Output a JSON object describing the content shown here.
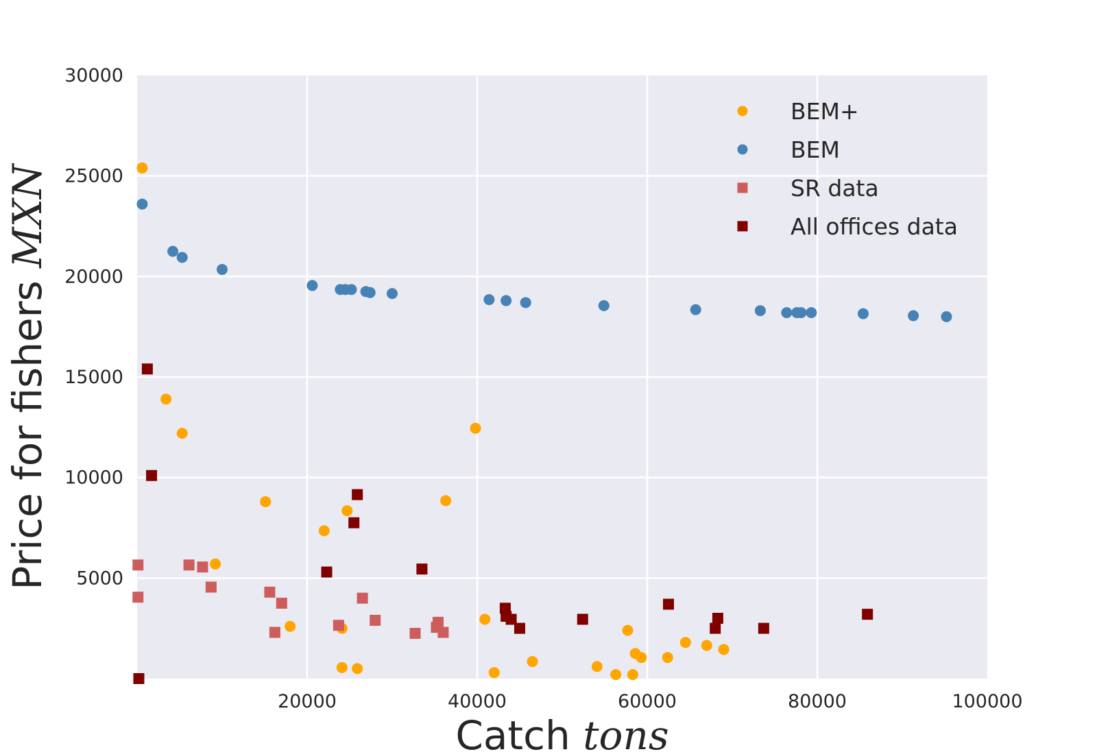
{
  "chart_data": {
    "type": "scatter",
    "xlabel": "Catch",
    "xlabel_math": "tons",
    "ylabel": "Price for fishers",
    "ylabel_math": "MXN",
    "xlim": [
      0,
      100000
    ],
    "ylim": [
      0,
      30000
    ],
    "xticks": [
      20000,
      40000,
      60000,
      80000,
      100000
    ],
    "yticks": [
      5000,
      10000,
      15000,
      20000,
      25000,
      30000
    ],
    "grid": true,
    "legend_position": "top-right",
    "series": [
      {
        "name": "BEM+",
        "marker": "circle",
        "color": "#ffa500",
        "points": [
          [
            600,
            25400
          ],
          [
            3400,
            13900
          ],
          [
            5300,
            12200
          ],
          [
            15100,
            8800
          ],
          [
            9200,
            5700
          ],
          [
            18000,
            2600
          ],
          [
            22000,
            7350
          ],
          [
            24700,
            8350
          ],
          [
            24100,
            2500
          ],
          [
            24100,
            550
          ],
          [
            25900,
            500
          ],
          [
            36300,
            8850
          ],
          [
            39800,
            12450
          ],
          [
            40900,
            2950
          ],
          [
            42000,
            300
          ],
          [
            46500,
            850
          ],
          [
            54100,
            600
          ],
          [
            56300,
            200
          ],
          [
            57700,
            2400
          ],
          [
            58300,
            200
          ],
          [
            58600,
            1250
          ],
          [
            59300,
            1050
          ],
          [
            62400,
            1050
          ],
          [
            64500,
            1800
          ],
          [
            67000,
            1650
          ],
          [
            69000,
            1450
          ]
        ]
      },
      {
        "name": "BEM",
        "marker": "circle",
        "color": "#4682b4",
        "points": [
          [
            600,
            23600
          ],
          [
            4200,
            21250
          ],
          [
            5300,
            20950
          ],
          [
            10000,
            20350
          ],
          [
            20600,
            19550
          ],
          [
            23900,
            19350
          ],
          [
            24500,
            19350
          ],
          [
            25200,
            19350
          ],
          [
            26900,
            19250
          ],
          [
            27400,
            19200
          ],
          [
            30000,
            19150
          ],
          [
            41400,
            18850
          ],
          [
            43400,
            18800
          ],
          [
            45700,
            18700
          ],
          [
            54900,
            18550
          ],
          [
            65700,
            18350
          ],
          [
            73300,
            18300
          ],
          [
            76400,
            18200
          ],
          [
            77600,
            18200
          ],
          [
            78100,
            18200
          ],
          [
            79300,
            18200
          ],
          [
            85400,
            18150
          ],
          [
            91300,
            18050
          ],
          [
            95200,
            18000
          ]
        ]
      },
      {
        "name": "SR data",
        "marker": "square",
        "color": "#cd5c5c",
        "points": [
          [
            100,
            5650
          ],
          [
            100,
            4050
          ],
          [
            6100,
            5650
          ],
          [
            7700,
            5550
          ],
          [
            8700,
            4550
          ],
          [
            15600,
            4300
          ],
          [
            16200,
            2300
          ],
          [
            17000,
            3750
          ],
          [
            23700,
            2650
          ],
          [
            26500,
            4000
          ],
          [
            28000,
            2900
          ],
          [
            32700,
            2250
          ],
          [
            35200,
            2550
          ],
          [
            35400,
            2800
          ],
          [
            36000,
            2300
          ]
        ]
      },
      {
        "name": "All offices data",
        "marker": "square",
        "color": "#800000",
        "points": [
          [
            200,
            0
          ],
          [
            1200,
            15400
          ],
          [
            1700,
            10100
          ],
          [
            22300,
            5300
          ],
          [
            25500,
            7750
          ],
          [
            25900,
            9150
          ],
          [
            33500,
            5450
          ],
          [
            43300,
            3500
          ],
          [
            43400,
            3100
          ],
          [
            44000,
            2950
          ],
          [
            45000,
            2500
          ],
          [
            52400,
            2950
          ],
          [
            62500,
            3700
          ],
          [
            68000,
            2500
          ],
          [
            68300,
            3000
          ],
          [
            73700,
            2500
          ],
          [
            85900,
            3200
          ]
        ]
      }
    ]
  }
}
